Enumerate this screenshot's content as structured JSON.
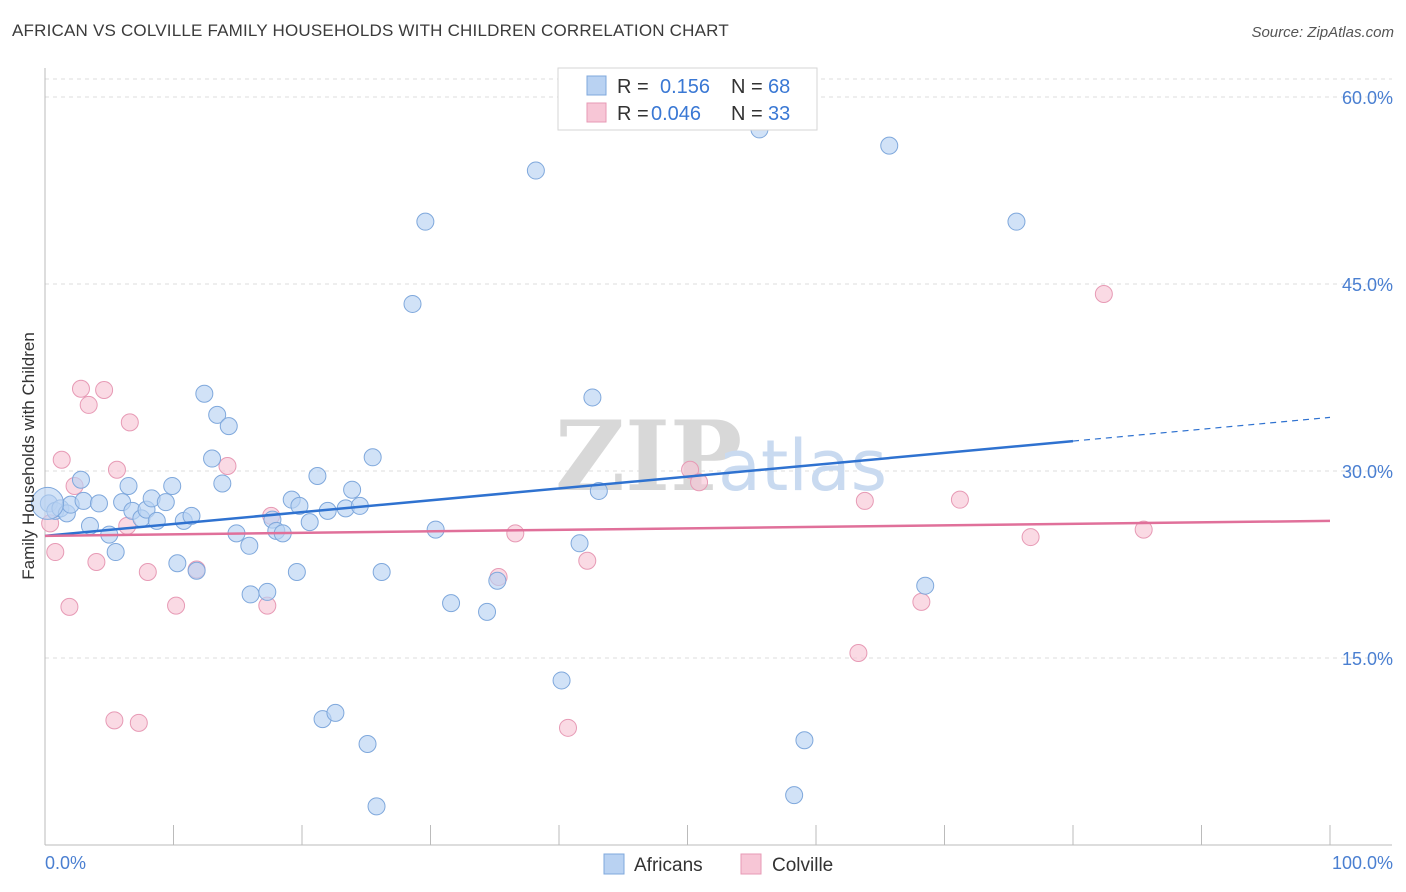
{
  "title": "AFRICAN VS COLVILLE FAMILY HOUSEHOLDS WITH CHILDREN CORRELATION CHART",
  "source": "Source: ZipAtlas.com",
  "watermark": {
    "zip": "ZIP",
    "atlas": "atlas"
  },
  "colors": {
    "africans_fill": "#b9d2f2",
    "africans_stroke": "#7fa8dc",
    "africans_line": "#2f72d0",
    "colville_fill": "#f7c6d6",
    "colville_stroke": "#e79ab5",
    "colville_line": "#e0709a",
    "grid": "#dddddd",
    "tick_text": "#4a7fd1"
  },
  "legend": {
    "rows": [
      {
        "r_label": "R = ",
        "r_value": "0.156",
        "n_label": "N = ",
        "n_value": "68"
      },
      {
        "r_label": "R = ",
        "r_value": "0.046",
        "n_label": "N = ",
        "n_value": "33"
      }
    ]
  },
  "bottom_legend": {
    "africans": "Africans",
    "colville": "Colville"
  },
  "chart_data": {
    "type": "scatter",
    "title": "AFRICAN VS COLVILLE FAMILY HOUSEHOLDS WITH CHILDREN CORRELATION CHART",
    "xlabel": "",
    "ylabel": "Family Households with Children",
    "xlim": [
      0,
      100
    ],
    "ylim": [
      0,
      62
    ],
    "x_tick_labels": [
      "0.0%",
      "100.0%"
    ],
    "y_ticks": [
      15,
      30,
      45,
      60
    ],
    "y_tick_labels": [
      "15.0%",
      "30.0%",
      "45.0%",
      "60.0%"
    ],
    "grid": true,
    "legend_position": "top-center",
    "series": [
      {
        "name": "Africans",
        "r": 0.156,
        "n": 68,
        "trend": {
          "x": [
            0,
            80
          ],
          "y": [
            24.8,
            32.4
          ],
          "dashed_to": [
            100,
            34.3
          ]
        },
        "points": [
          [
            0.3,
            27.4
          ],
          [
            0.8,
            26.8
          ],
          [
            1.2,
            27.0
          ],
          [
            1.7,
            26.6
          ],
          [
            2.0,
            27.3
          ],
          [
            2.8,
            29.3
          ],
          [
            3.0,
            27.6
          ],
          [
            3.5,
            25.6
          ],
          [
            4.2,
            27.4
          ],
          [
            5.0,
            24.9
          ],
          [
            5.5,
            23.5
          ],
          [
            6.0,
            27.5
          ],
          [
            6.5,
            28.8
          ],
          [
            6.8,
            26.8
          ],
          [
            7.5,
            26.2
          ],
          [
            7.9,
            26.9
          ],
          [
            8.3,
            27.8
          ],
          [
            8.7,
            26.0
          ],
          [
            9.4,
            27.5
          ],
          [
            9.9,
            28.8
          ],
          [
            10.3,
            22.6
          ],
          [
            10.8,
            26.0
          ],
          [
            11.4,
            26.4
          ],
          [
            11.8,
            22.0
          ],
          [
            12.4,
            36.2
          ],
          [
            13.0,
            31.0
          ],
          [
            13.4,
            34.5
          ],
          [
            13.8,
            29.0
          ],
          [
            14.3,
            33.6
          ],
          [
            14.9,
            25.0
          ],
          [
            15.9,
            24.0
          ],
          [
            16.0,
            20.1
          ],
          [
            17.3,
            20.3
          ],
          [
            17.7,
            26.1
          ],
          [
            18.0,
            25.2
          ],
          [
            18.5,
            25.0
          ],
          [
            19.2,
            27.7
          ],
          [
            19.6,
            21.9
          ],
          [
            19.8,
            27.2
          ],
          [
            20.6,
            25.9
          ],
          [
            21.2,
            29.6
          ],
          [
            21.6,
            10.1
          ],
          [
            22.0,
            26.8
          ],
          [
            22.6,
            10.6
          ],
          [
            23.4,
            27.0
          ],
          [
            23.9,
            28.5
          ],
          [
            24.5,
            27.2
          ],
          [
            25.1,
            8.1
          ],
          [
            25.5,
            31.1
          ],
          [
            25.8,
            3.1
          ],
          [
            26.2,
            21.9
          ],
          [
            28.6,
            43.4
          ],
          [
            29.6,
            50.0
          ],
          [
            30.4,
            25.3
          ],
          [
            31.6,
            19.4
          ],
          [
            34.4,
            18.7
          ],
          [
            35.2,
            21.2
          ],
          [
            38.2,
            54.1
          ],
          [
            40.2,
            13.2
          ],
          [
            41.6,
            24.2
          ],
          [
            42.6,
            35.9
          ],
          [
            43.1,
            28.4
          ],
          [
            55.6,
            57.4
          ],
          [
            58.3,
            4.0
          ],
          [
            59.1,
            8.4
          ],
          [
            65.7,
            56.1
          ],
          [
            68.5,
            20.8
          ],
          [
            75.6,
            50.0
          ]
        ]
      },
      {
        "name": "Colville",
        "r": 0.046,
        "n": 33,
        "trend": {
          "x": [
            0,
            100
          ],
          "y": [
            24.8,
            26.0
          ]
        },
        "points": [
          [
            0.4,
            25.8
          ],
          [
            0.8,
            23.5
          ],
          [
            1.3,
            30.9
          ],
          [
            1.9,
            19.1
          ],
          [
            2.3,
            28.8
          ],
          [
            2.8,
            36.6
          ],
          [
            3.4,
            35.3
          ],
          [
            4.0,
            22.7
          ],
          [
            4.6,
            36.5
          ],
          [
            5.4,
            10.0
          ],
          [
            5.6,
            30.1
          ],
          [
            6.4,
            25.6
          ],
          [
            6.6,
            33.9
          ],
          [
            7.3,
            9.8
          ],
          [
            8.0,
            21.9
          ],
          [
            10.2,
            19.2
          ],
          [
            11.8,
            22.1
          ],
          [
            14.2,
            30.4
          ],
          [
            17.3,
            19.2
          ],
          [
            17.6,
            26.4
          ],
          [
            35.3,
            21.5
          ],
          [
            36.6,
            25.0
          ],
          [
            40.7,
            9.4
          ],
          [
            42.2,
            22.8
          ],
          [
            50.2,
            30.1
          ],
          [
            50.9,
            29.1
          ],
          [
            63.8,
            27.6
          ],
          [
            63.3,
            15.4
          ],
          [
            68.2,
            19.5
          ],
          [
            71.2,
            27.7
          ],
          [
            76.7,
            24.7
          ],
          [
            82.4,
            44.2
          ],
          [
            85.5,
            25.3
          ]
        ]
      }
    ]
  }
}
